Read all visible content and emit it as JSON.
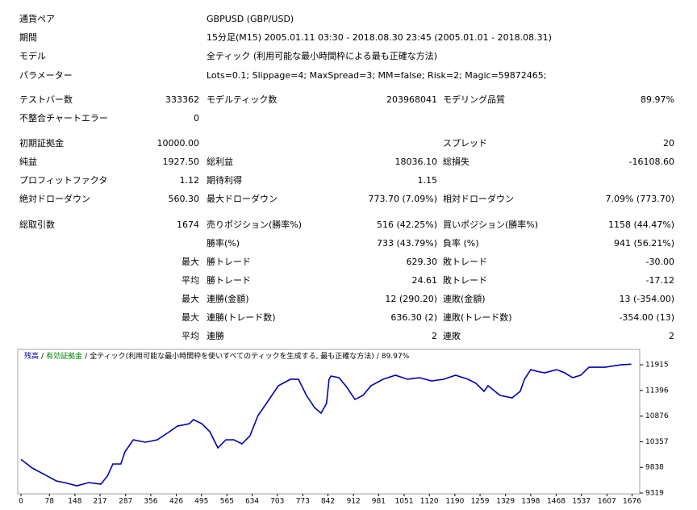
{
  "header": {
    "rows": [
      [
        "通貨ペア",
        "GBPUSD (GBP/USD)"
      ],
      [
        "期間",
        "15分足(M15) 2005.01.11 03:30 - 2018.08.30 23:45 (2005.01.01 - 2018.08.31)"
      ],
      [
        "モデル",
        "全ティック (利用可能な最小時間枠による最も正確な方法)"
      ],
      [
        "パラメーター",
        "Lots=0.1; Slippage=4; MaxSpread=3; MM=false; Risk=2; Magic=59872465;"
      ]
    ]
  },
  "stats": {
    "rows": [
      [
        "テストバー数",
        "333362",
        "モデルティック数",
        "203968041",
        "モデリング品質",
        "89.97%"
      ],
      [
        "不整合チャートエラー",
        "0",
        null,
        null,
        null,
        null
      ],
      [
        "初期証拠金",
        "10000.00",
        null,
        null,
        "スプレッド",
        "20"
      ],
      [
        "純益",
        "1927.50",
        "総利益",
        "18036.10",
        "総損失",
        "-16108.60"
      ],
      [
        "プロフィットファクタ",
        "1.12",
        "期待利得",
        "1.15",
        null,
        null
      ],
      [
        "絶対ドローダウン",
        "560.30",
        "最大ドローダウン",
        "773.70 (7.09%)",
        "相対ドローダウン",
        "7.09% (773.70)"
      ],
      [
        "総取引数",
        "1674",
        "売りポジション(勝率%)",
        "516 (42.25%)",
        "買いポジション(勝率%)",
        "1158 (44.47%)"
      ],
      [
        null,
        null,
        "勝率(%)",
        "733 (43.79%)",
        "負率 (%)",
        "941 (56.21%)"
      ],
      [
        null,
        "最大",
        "勝トレード",
        "629.30",
        "敗トレード",
        "-30.00"
      ],
      [
        null,
        "平均",
        "勝トレード",
        "24.61",
        "敗トレード",
        "-17.12"
      ],
      [
        null,
        "最大",
        "連勝(金額)",
        "12 (290.20)",
        "連敗(金額)",
        "13 (-354.00)"
      ],
      [
        null,
        "最大",
        "連勝(トレード数)",
        "636.30 (2)",
        "連敗(トレード数)",
        "-354.00 (13)"
      ],
      [
        null,
        "平均",
        "連勝",
        "2",
        "連敗",
        "2"
      ]
    ]
  },
  "chart_data": {
    "type": "line",
    "legend": {
      "separator": "/",
      "equity": "有効証拠金",
      "equity_color": "#008000",
      "model": "全ティック(利用可能な最小時間枠を使いすべてのティックを生成する, 最も正確な方法)",
      "quality": "89.97%"
    },
    "x": [
      0,
      31,
      64,
      97,
      119,
      153,
      186,
      219,
      237,
      252,
      274,
      285,
      308,
      341,
      374,
      407,
      429,
      462,
      473,
      496,
      518,
      529,
      540,
      562,
      584,
      606,
      628,
      650,
      673,
      706,
      739,
      761,
      783,
      805,
      823,
      838,
      845,
      850,
      872,
      894,
      916,
      938,
      960,
      993,
      1027,
      1060,
      1093,
      1126,
      1159,
      1192,
      1226,
      1248,
      1270,
      1281,
      1314,
      1347,
      1369,
      1381,
      1398,
      1414,
      1436,
      1469,
      1491,
      1513,
      1535,
      1558,
      1602,
      1646,
      1674
    ],
    "series": [
      {
        "name": "残高",
        "color": "#0000b0",
        "values": [
          10000,
          9825,
          9695,
          9564,
          9531,
          9466,
          9531,
          9499,
          9662,
          9907,
          9907,
          10152,
          10397,
          10348,
          10397,
          10560,
          10674,
          10723,
          10805,
          10723,
          10560,
          10397,
          10233,
          10397,
          10397,
          10315,
          10478,
          10887,
          11132,
          11491,
          11622,
          11622,
          11295,
          11050,
          10936,
          11132,
          11622,
          11687,
          11654,
          11458,
          11213,
          11295,
          11491,
          11622,
          11703,
          11622,
          11654,
          11589,
          11622,
          11703,
          11622,
          11540,
          11377,
          11491,
          11295,
          11246,
          11377,
          11622,
          11817,
          11785,
          11752,
          11817,
          11752,
          11654,
          11703,
          11866,
          11866,
          11915,
          11927.5
        ]
      }
    ],
    "xlim": [
      0,
      1697
    ],
    "ylim": [
      9319,
      12226
    ],
    "xticks": [
      0,
      78,
      148,
      217,
      287,
      356,
      426,
      495,
      565,
      634,
      703,
      773,
      842,
      912,
      981,
      1051,
      1120,
      1190,
      1259,
      1329,
      1398,
      1468,
      1537,
      1607,
      1676
    ],
    "yticks": [
      9319,
      9838,
      10357,
      10876,
      11396,
      11915
    ]
  }
}
